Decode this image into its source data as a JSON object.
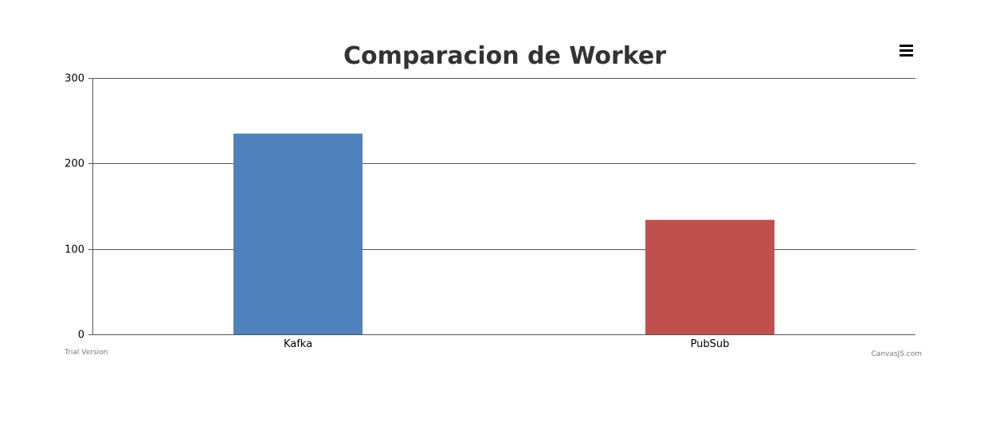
{
  "chart_data": {
    "type": "bar",
    "title": "Comparacion de Worker",
    "categories": [
      "Kafka",
      "PubSub"
    ],
    "values": [
      235,
      134
    ],
    "colors": [
      "#4F81BC",
      "#C0504E"
    ],
    "ylim": [
      0,
      300
    ],
    "yticks": [
      0,
      100,
      200,
      300
    ],
    "grid": true,
    "xlabel": "",
    "ylabel": ""
  },
  "toolbar": {
    "menu_icon": "hamburger-menu-icon"
  },
  "footer": {
    "trial_label": "Trial Version",
    "credit_label": "CanvasJS.com"
  }
}
